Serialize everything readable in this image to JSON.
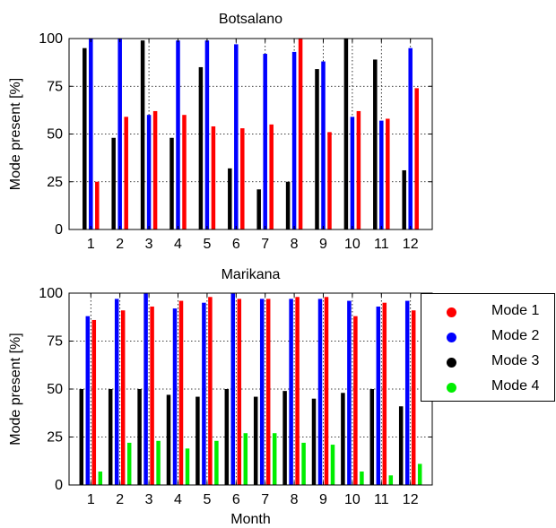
{
  "chart_data": [
    {
      "type": "bar",
      "title": "Botsalano",
      "xlabel": "",
      "ylabel": "Mode present [%]",
      "ylim": [
        0,
        100
      ],
      "yticks": [
        0,
        25,
        50,
        75,
        100
      ],
      "grid": true,
      "categories": [
        "1",
        "2",
        "3",
        "4",
        "5",
        "6",
        "7",
        "8",
        "9",
        "10",
        "11",
        "12"
      ],
      "series": [
        {
          "name": "Mode 3",
          "color": "#000000",
          "values": [
            95,
            48,
            99,
            48,
            85,
            32,
            21,
            25,
            84,
            100,
            89,
            31
          ]
        },
        {
          "name": "Mode 2",
          "color": "#0000ff",
          "values": [
            100,
            100,
            60,
            99,
            99,
            97,
            92,
            93,
            88,
            59,
            57,
            95
          ]
        },
        {
          "name": "Mode 1",
          "color": "#ff0000",
          "values": [
            25,
            59,
            62,
            60,
            54,
            53,
            55,
            100,
            51,
            62,
            58,
            74
          ]
        }
      ]
    },
    {
      "type": "bar",
      "title": "Marikana",
      "xlabel": "Month",
      "ylabel": "Mode present [%]",
      "ylim": [
        0,
        100
      ],
      "yticks": [
        0,
        25,
        50,
        75,
        100
      ],
      "grid": true,
      "legend": "right",
      "categories": [
        "1",
        "2",
        "3",
        "4",
        "5",
        "6",
        "7",
        "8",
        "9",
        "10",
        "11",
        "12"
      ],
      "series": [
        {
          "name": "Mode 3",
          "color": "#000000",
          "values": [
            50,
            50,
            50,
            47,
            46,
            50,
            46,
            49,
            45,
            48,
            50,
            41
          ]
        },
        {
          "name": "Mode 2",
          "color": "#0000ff",
          "values": [
            88,
            97,
            100,
            92,
            95,
            100,
            97,
            97,
            97,
            96,
            93,
            96
          ]
        },
        {
          "name": "Mode 1",
          "color": "#ff0000",
          "values": [
            86,
            91,
            93,
            96,
            98,
            97,
            97,
            98,
            98,
            88,
            95,
            91
          ]
        },
        {
          "name": "Mode 4",
          "color": "#00ee00",
          "values": [
            7,
            22,
            23,
            19,
            23,
            27,
            27,
            22,
            21,
            7,
            5,
            11
          ]
        }
      ]
    }
  ],
  "legend": [
    {
      "label": "Mode 1",
      "color": "#ff0000"
    },
    {
      "label": "Mode 2",
      "color": "#0000ff"
    },
    {
      "label": "Mode 3",
      "color": "#000000"
    },
    {
      "label": "Mode 4",
      "color": "#00ee00"
    }
  ]
}
